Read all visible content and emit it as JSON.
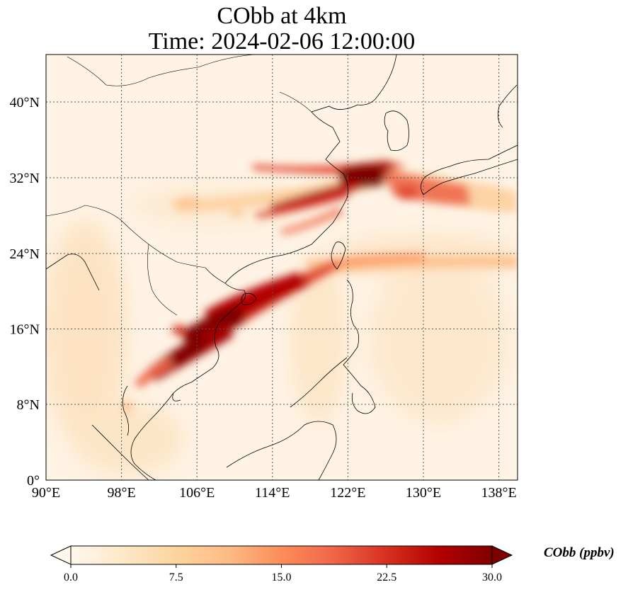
{
  "title": "CObb at 4km",
  "subtitle": "Time: 2024-02-06 12:00:00",
  "map": {
    "lon_range": [
      90,
      140
    ],
    "lat_range": [
      0,
      44.5
    ],
    "x_ticks": [
      "90°E",
      "98°E",
      "106°E",
      "114°E",
      "122°E",
      "130°E",
      "138°E"
    ],
    "y_ticks": [
      "0°",
      "8°N",
      "16°N",
      "24°N",
      "32°N",
      "40°N"
    ],
    "gridlines": true,
    "colormap": "OrRd"
  },
  "colorbar": {
    "label": "CObb (ppbv)",
    "ticks": [
      "0.0",
      "7.5",
      "15.0",
      "22.5",
      "30.0"
    ],
    "range": [
      0,
      30
    ],
    "extend": "both",
    "colors": [
      "#fff7ec",
      "#fee8c8",
      "#fdd49e",
      "#fdbb84",
      "#fc8d59",
      "#ef6548",
      "#d7301f",
      "#b30000",
      "#7f0000"
    ]
  }
}
